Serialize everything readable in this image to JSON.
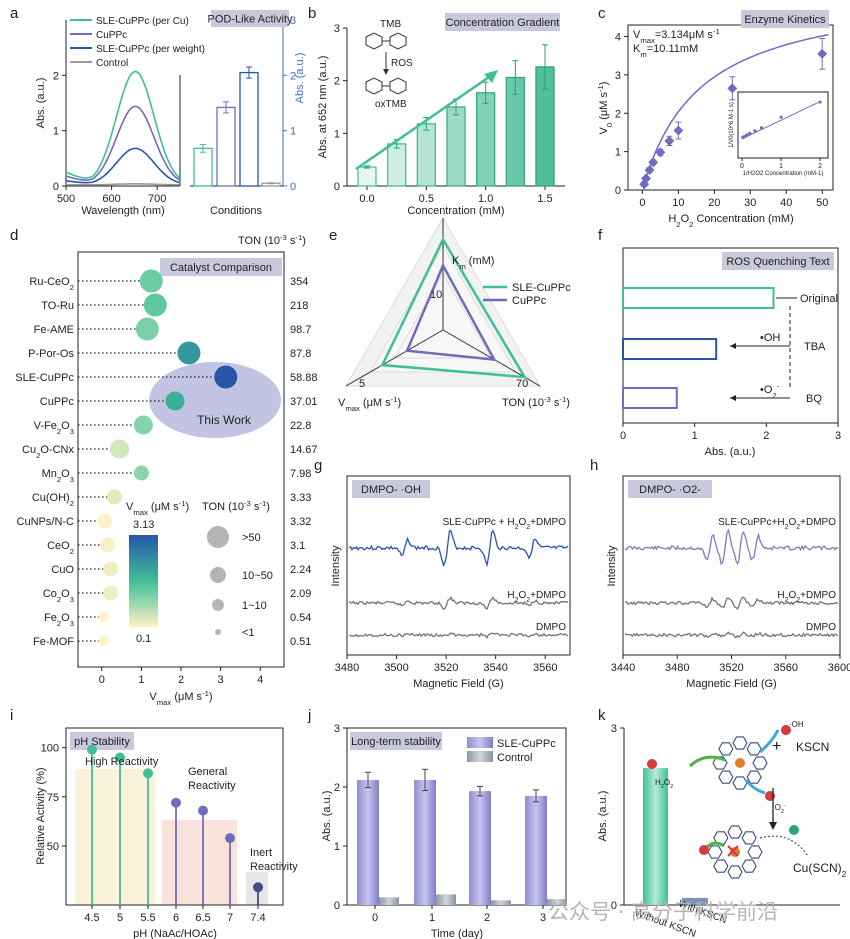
{
  "watermark": "公众号 · 高分子科学前沿",
  "colors": {
    "teal": "#3fbf98",
    "purple": "#6f6cbd",
    "blue": "#2756a8",
    "gray": "#9a9a9a",
    "dark": "#555555",
    "axis": "#222222",
    "badge": "#c8c9dc",
    "tickblue": "#3f6fc2"
  },
  "chart_data": [
    {
      "id": "a",
      "panel_letter": "a",
      "type": "line+bar",
      "title": "POD-Like Activity",
      "legend": [
        "SLE-CuPPc (per Cu)",
        "CuPPc",
        "SLE-CuPPc (per weight)",
        "Control"
      ],
      "xlabel": "Wavelength (nm)",
      "ylabel": "Abs. (a.u.)",
      "ylabel_right": "Abs. (a.u.)",
      "xlabel_bar": "Conditions",
      "xticks": [
        "500",
        "600",
        "700"
      ],
      "yticks": [
        "0",
        "1",
        "2"
      ],
      "yticks_right": [
        "0",
        "1",
        "2",
        "3"
      ],
      "xlim": [
        500,
        750
      ],
      "ylim": [
        0,
        3
      ],
      "peaks": [
        {
          "name": "SLE-CuPPc (per Cu)",
          "peak": 2.05
        },
        {
          "name": "CuPPc",
          "peak": 1.42
        },
        {
          "name": "SLE-CuPPc (per weight)",
          "peak": 0.66
        },
        {
          "name": "Control",
          "peak": 0.02
        }
      ],
      "bars": [
        0.68,
        1.42,
        2.05,
        0.05
      ],
      "bar_err": [
        0.07,
        0.1,
        0.1,
        0.01
      ]
    },
    {
      "id": "b",
      "panel_letter": "b",
      "type": "bar",
      "title": "Concentration Gradient",
      "annotations": [
        "TMB",
        "ROS",
        "oxTMB"
      ],
      "xlabel": "Concentration (mM)",
      "ylabel": "Abs. at 652 nm (a.u.)",
      "categories": [
        0,
        0.25,
        0.5,
        0.75,
        1.0,
        1.25,
        1.5
      ],
      "values": [
        0.36,
        0.8,
        1.18,
        1.5,
        1.77,
        2.06,
        2.26
      ],
      "err": [
        0.02,
        0.08,
        0.12,
        0.15,
        0.2,
        0.32,
        0.42
      ],
      "xticks": [
        "0.0",
        "0.5",
        "1.0",
        "1.5"
      ],
      "yticks": [
        "0",
        "1",
        "2",
        "3"
      ],
      "ylim": [
        0,
        3
      ]
    },
    {
      "id": "c",
      "panel_letter": "c",
      "type": "scatter",
      "title": "Enzyme Kinetics",
      "vmax_label": "V",
      "vmax_sub": "max",
      "vmax_value": "=3.134μM s",
      "vmax_sup": "-1",
      "km_label": "K",
      "km_sub": "m",
      "km_value": "=10.11mM",
      "ylabel": "V0 (μM s-1)",
      "xlabel": "H2O2 Concentration (mM)",
      "x": [
        0.5,
        1,
        2,
        3,
        5,
        7.5,
        10,
        25,
        50
      ],
      "y": [
        0.15,
        0.3,
        0.52,
        0.72,
        0.98,
        1.28,
        1.55,
        2.65,
        3.55
      ],
      "err": [
        0.05,
        0.05,
        0.06,
        0.06,
        0.08,
        0.12,
        0.22,
        0.3,
        0.4
      ],
      "xticks": [
        "0",
        "10",
        "20",
        "30",
        "40",
        "50"
      ],
      "yticks": [
        "0",
        "1",
        "2",
        "3",
        "4"
      ],
      "xlim": [
        -4,
        53
      ],
      "ylim": [
        0,
        4.3
      ],
      "inset": {
        "xlabel": "1/H2O2 Concentration (mM-1)",
        "ylabel": "1/V0(10^6 M-1 s)",
        "xticks": [
          "0",
          "1",
          "2"
        ],
        "x": [
          0.02,
          0.04,
          0.1,
          0.13,
          0.2,
          0.33,
          0.5,
          1,
          2
        ],
        "y": [
          0.33,
          0.34,
          0.36,
          0.38,
          0.41,
          0.46,
          0.52,
          0.73,
          1.03
        ]
      }
    },
    {
      "id": "d",
      "panel_letter": "d",
      "type": "bubble",
      "title": "Catalyst Comparison",
      "ton_header": "TON (10",
      "ton_header_sup": "-3",
      "ton_header_end": " s",
      "ton_header_sup2": "-1",
      "ton_header_close": ")",
      "xlabel": "V",
      "xlabel_sub": "max",
      "xlabel_end": " (μM s",
      "xlabel_sup": "-1",
      "xlabel_close": ")",
      "xticks": [
        "0",
        "1",
        "2",
        "3",
        "4"
      ],
      "xlim": [
        -0.6,
        4.6
      ],
      "catalysts": [
        {
          "name": "Ru-CeO2",
          "vmax": 1.25,
          "ton": "354",
          "size": 4
        },
        {
          "name": "TO-Ru",
          "vmax": 1.35,
          "ton": "218",
          "size": 4
        },
        {
          "name": "Fe-AME",
          "vmax": 1.15,
          "ton": "98.7",
          "size": 4
        },
        {
          "name": "P-Por-Os",
          "vmax": 2.2,
          "ton": "87.8",
          "size": 4
        },
        {
          "name": "SLE-CuPPc",
          "vmax": 3.13,
          "ton": "58.88",
          "size": 4
        },
        {
          "name": "CuPPc",
          "vmax": 1.85,
          "ton": "37.01",
          "size": 3
        },
        {
          "name": "V-Fe2O3",
          "vmax": 1.05,
          "ton": "22.8",
          "size": 3
        },
        {
          "name": "Cu2O-CNx",
          "vmax": 0.45,
          "ton": "14.67",
          "size": 3
        },
        {
          "name": "Mn2O3",
          "vmax": 1.0,
          "ton": "7.98",
          "size": 2
        },
        {
          "name": "Cu(OH)2",
          "vmax": 0.32,
          "ton": "3.33",
          "size": 2
        },
        {
          "name": "CuNPs/N-C",
          "vmax": 0.08,
          "ton": "3.32",
          "size": 2
        },
        {
          "name": "CeO2",
          "vmax": 0.15,
          "ton": "3.1",
          "size": 2
        },
        {
          "name": "CuO",
          "vmax": 0.22,
          "ton": "2.24",
          "size": 2
        },
        {
          "name": "Co2O3",
          "vmax": 0.22,
          "ton": "2.09",
          "size": 2
        },
        {
          "name": "Fe2O3",
          "vmax": 0.05,
          "ton": "0.54",
          "size": 1
        },
        {
          "name": "Fe-MOF",
          "vmax": 0.05,
          "ton": "0.51",
          "size": 1
        }
      ],
      "this_work": "This Work",
      "vmax_legend_title": "V",
      "vmax_legend_sub": "max",
      "vmax_legend_end": " (μM s",
      "vmax_legend_sup": "-1",
      "vmax_legend_close": ")",
      "vmax_legend_max": "3.13",
      "vmax_legend_min": "0.1",
      "ton_legend_title": "TON (10",
      "ton_legend_sup": "-3",
      "ton_legend_end": " s",
      "ton_legend_sup2": "-1",
      "ton_legend_close": ")",
      "ton_legend_items": [
        ">50",
        "10~50",
        "1~10",
        "<1"
      ]
    },
    {
      "id": "e",
      "panel_letter": "e",
      "type": "radar",
      "axis_top": "K",
      "axis_top_sub": "m",
      "axis_top_end": " (mM)",
      "axis_left": "V",
      "axis_left_sub": "max",
      "axis_left_end": " (μM s",
      "axis_left_sup": "-1",
      "axis_left_close": ")",
      "axis_right": "TON (10",
      "axis_right_sup": "-3",
      "axis_right_end": " s",
      "axis_right_sup2": "-1",
      "axis_right_close": ")",
      "tick_top": "10",
      "tick_left": "5",
      "tick_right": "70",
      "series": [
        {
          "name": "SLE-CuPPc",
          "km": 10.11,
          "vmax": 3.13,
          "ton": 58.88
        },
        {
          "name": "CuPPc",
          "km": 7.2,
          "vmax": 1.85,
          "ton": 37.01
        }
      ],
      "max": {
        "km": 10,
        "vmax": 5,
        "ton": 70
      }
    },
    {
      "id": "f",
      "panel_letter": "f",
      "type": "barh",
      "title": "ROS Quenching Text",
      "xlabel": "Abs. (a.u.)",
      "xticks": [
        "0",
        "1",
        "2",
        "3"
      ],
      "xlim": [
        0,
        3
      ],
      "bars": [
        {
          "name": "Original",
          "value": 2.1
        },
        {
          "name": "TBA",
          "value": 1.3,
          "label": "•OH"
        },
        {
          "name": "BQ",
          "value": 0.75,
          "label": "•O",
          "label_sub": "2",
          "label_sup": "-"
        }
      ]
    },
    {
      "id": "g",
      "panel_letter": "g",
      "type": "spectrum",
      "title": "DMPO- ·OH",
      "xlabel": "Magnetic Field (G)",
      "ylabel": "Intensity",
      "xticks": [
        "3480",
        "3500",
        "3520",
        "3540",
        "3560"
      ],
      "xlim": [
        3480,
        3570
      ],
      "traces": [
        {
          "name": "SLE-CuPPc + H2O2+DMPO"
        },
        {
          "name": "H2O2+DMPO"
        },
        {
          "name": "DMPO"
        }
      ]
    },
    {
      "id": "h",
      "panel_letter": "h",
      "type": "spectrum",
      "title": "DMPO- ·O2-",
      "xlabel": "Magnetic Field (G)",
      "ylabel": "Intensity",
      "xticks": [
        "3440",
        "3480",
        "3520",
        "3560",
        "3600"
      ],
      "xlim": [
        3440,
        3600
      ],
      "traces": [
        {
          "name": "SLE-CuPPc+H2O2+DMPO"
        },
        {
          "name": "H2O2+DMPO"
        },
        {
          "name": "DMPO"
        }
      ]
    },
    {
      "id": "i",
      "panel_letter": "i",
      "type": "lollipop",
      "title": "pH Stability",
      "xlabel": "pH (NaAc/HOAc)",
      "ylabel": "Relative Activity (%)",
      "categories": [
        "4.5",
        "5",
        "5.5",
        "6",
        "6.5",
        "7",
        "7.4"
      ],
      "values": [
        99,
        95,
        87,
        72,
        68,
        54,
        29
      ],
      "yticks": [
        "50",
        "75",
        "100"
      ],
      "ylim": [
        20,
        110
      ],
      "zones": [
        "High Reactivity",
        "General Reactivity",
        "Inert Reactivity"
      ]
    },
    {
      "id": "j",
      "panel_letter": "j",
      "type": "bar",
      "title": "Long-term stability",
      "xlabel": "Time (day)",
      "ylabel": "Abs. (a.u.)",
      "categories": [
        "0",
        "1",
        "2",
        "3"
      ],
      "series": [
        {
          "name": "SLE-CuPPc",
          "values": [
            2.12,
            2.12,
            1.93,
            1.85
          ],
          "err": [
            0.13,
            0.18,
            0.08,
            0.1
          ]
        },
        {
          "name": "Control",
          "values": [
            0.13,
            0.18,
            0.08,
            0.1
          ]
        }
      ],
      "yticks": [
        "0",
        "1",
        "2",
        "3"
      ],
      "ylim": [
        0,
        3
      ]
    },
    {
      "id": "k",
      "panel_letter": "k",
      "type": "bar",
      "ylabel": "Abs. (a.u.)",
      "categories": [
        "Without KSCN",
        "With KSCN"
      ],
      "values": [
        2.32,
        0.12
      ],
      "yticks": [
        "0",
        "3"
      ],
      "ylim": [
        0,
        3
      ],
      "labels": {
        "reagent": "KSCN",
        "product": "Cu(SCN)",
        "product_sub": "2",
        "h2o2": "H",
        "h2o2_sub": "2",
        "h2o2_end": "O",
        "h2o2_sub2": "2",
        "oh": "·OH",
        "o2": "·O",
        "o2_sup": "-",
        "o2_sub": "2"
      }
    }
  ]
}
